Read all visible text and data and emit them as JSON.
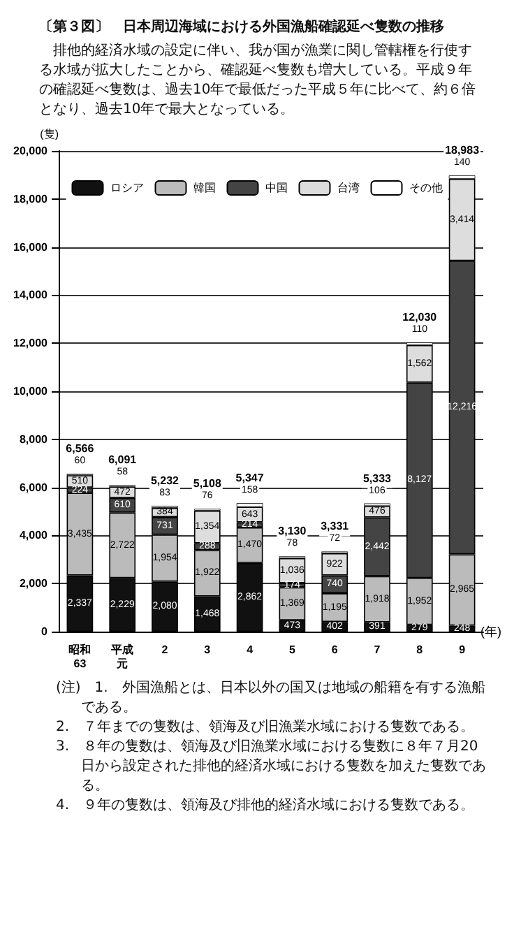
{
  "chart_data": {
    "type": "bar",
    "stacked": true,
    "title": "〔第３図〕　日本周辺海域における外国漁船確認延べ隻数の推移",
    "subtitle": "排他的経済水域の設定に伴い、我が国が漁業に関し管轄権を行使する水域が拡大したことから、確認延べ隻数も増大している。平成９年の確認延べ隻数は、過去10年で最低だった平成５年に比べて、約６倍となり、過去10年で最大となっている。",
    "ylabel": "(隻)",
    "xlabel": "(年)",
    "categories": [
      "昭和63",
      "平成元",
      "2",
      "3",
      "4",
      "5",
      "6",
      "7",
      "8",
      "9"
    ],
    "series": [
      {
        "name": "ロシア",
        "color": "#111111",
        "values": [
          2337,
          2229,
          2080,
          1468,
          2862,
          473,
          402,
          391,
          279,
          248
        ],
        "value_labels": [
          "2,337",
          "2,229",
          "2,080",
          "1,468",
          "2,862",
          "473",
          "402",
          "391",
          "279",
          "248"
        ]
      },
      {
        "name": "韓国",
        "color": "#bbbbbb",
        "values": [
          3435,
          2722,
          1954,
          1922,
          1470,
          1369,
          1195,
          1918,
          1952,
          2965
        ],
        "value_labels": [
          "3,435",
          "2,722",
          "1,954",
          "1,922",
          "1,470",
          "1,369",
          "1,195",
          "1,918",
          "1,952",
          "2,965"
        ]
      },
      {
        "name": "中国",
        "color": "#444444",
        "values": [
          224,
          610,
          731,
          288,
          214,
          174,
          740,
          2442,
          8127,
          12216
        ],
        "value_labels": [
          "224",
          "610",
          "731",
          "288",
          "214",
          "174",
          "740",
          "2,442",
          "8,127",
          "12,216"
        ]
      },
      {
        "name": "台湾",
        "color": "#dddddd",
        "values": [
          510,
          472,
          384,
          1354,
          643,
          1036,
          922,
          476,
          1562,
          3414
        ],
        "value_labels": [
          "510",
          "472",
          "384",
          "1,354",
          "643",
          "1,036",
          "922",
          "476",
          "1,562",
          "3,414"
        ]
      },
      {
        "name": "その他",
        "color": "#ffffff",
        "values": [
          60,
          58,
          83,
          76,
          158,
          78,
          72,
          106,
          110,
          140
        ],
        "value_labels": [
          "60",
          "58",
          "83",
          "76",
          "158",
          "78",
          "72",
          "106",
          "110",
          "140"
        ]
      }
    ],
    "totals": [
      "6,566",
      "6,091",
      "5,232",
      "5,108",
      "5,347",
      "3,130",
      "3,331",
      "5,333",
      "12,030",
      "18,983"
    ],
    "ylim": [
      0,
      20000
    ],
    "yticks": [
      {
        "value": 0,
        "label": "0"
      },
      {
        "value": 2000,
        "label": "2,000"
      },
      {
        "value": 4000,
        "label": "4,000"
      },
      {
        "value": 6000,
        "label": "6,000"
      },
      {
        "value": 8000,
        "label": "8,000"
      },
      {
        "value": 10000,
        "label": "10,000"
      },
      {
        "value": 12000,
        "label": "12,000"
      },
      {
        "value": 14000,
        "label": "14,000"
      },
      {
        "value": 16000,
        "label": "16,000"
      },
      {
        "value": 18000,
        "label": "18,000"
      },
      {
        "value": 20000,
        "label": "20,000"
      }
    ],
    "grid": "y",
    "legend": "top",
    "annotations": [
      "(注)　1.　外国漁船とは、日本以外の国又は地域の船籍を有する漁船である。",
      "2.　７年までの隻数は、領海及び旧漁業水域における隻数である。",
      "3.　８年の隻数は、領海及び旧漁業水域における隻数に８年７月20日から設定された排他的経済水域における隻数を加えた隻数である。",
      "4.　９年の隻数は、領海及び排他的経済水域における隻数である。"
    ]
  }
}
